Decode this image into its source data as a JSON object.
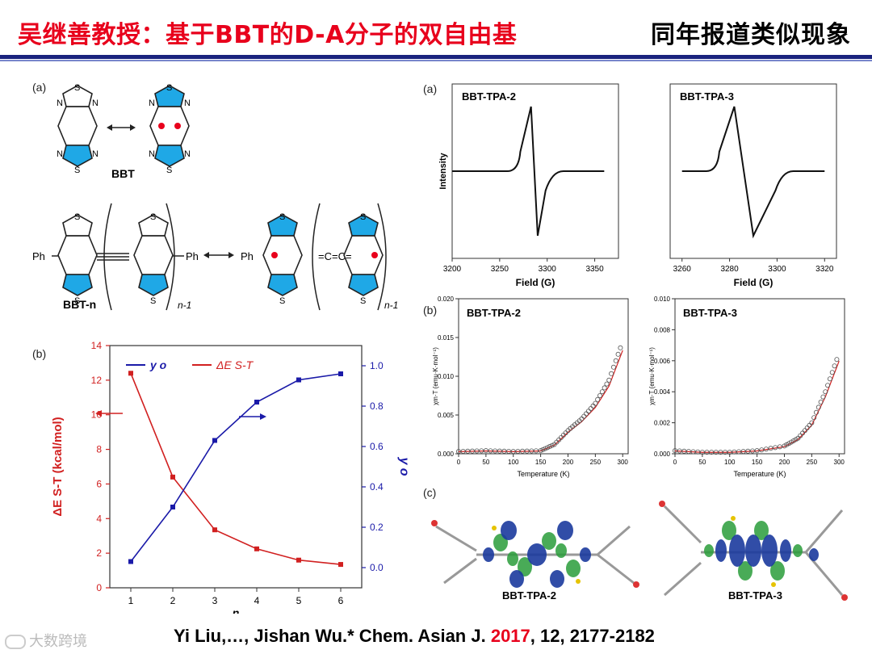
{
  "header": {
    "title_left": "吴继善教授：基于BBT的D-A分子的双自由基",
    "title_right": "同年报道类似现象"
  },
  "panel_labels": {
    "a_left": "(a)",
    "b_left": "(b)",
    "a_right": "(a)",
    "b_right": "(b)",
    "c_right": "(c)"
  },
  "structures": {
    "bbt_label": "BBT",
    "bbtn_label": "BBT-n",
    "ph": "Ph",
    "s": "S",
    "n": "N",
    "n_minus_1": "n-1",
    "cumulene": "=C=C="
  },
  "colors": {
    "accent_red": "#e8001c",
    "navy": "#1a237e",
    "series_blue": "#1a1aa8",
    "series_red": "#d12020",
    "ring_blue": "#1fa8e6"
  },
  "chart_data": [
    {
      "type": "line",
      "title": "",
      "xlabel": "n",
      "ylabel_left": "ΔE S-T (kcal/mol)",
      "ylabel_right": "y o",
      "x": [
        1,
        2,
        3,
        4,
        5,
        6
      ],
      "xlim": [
        0.5,
        6.5
      ],
      "ylim_left": [
        0,
        14
      ],
      "ylim_right": [
        -0.1,
        1.1
      ],
      "left_ticks": [
        "0",
        "2",
        "4",
        "6",
        "8",
        "10",
        "12",
        "14"
      ],
      "right_ticks": [
        "0.0",
        "0.2",
        "0.4",
        "0.6",
        "0.8",
        "1.0"
      ],
      "series": [
        {
          "name": "ΔE S-T",
          "axis": "left",
          "values": [
            12.4,
            6.4,
            3.35,
            2.25,
            1.6,
            1.35
          ]
        },
        {
          "name": "y o",
          "axis": "right",
          "values": [
            0.03,
            0.3,
            0.63,
            0.82,
            0.93,
            0.96
          ]
        }
      ],
      "legend": "top",
      "grid": false
    },
    {
      "type": "line",
      "title": "BBT-TPA-2",
      "xlabel": "Field (G)",
      "ylabel": "Intensity",
      "xlim": [
        3200,
        3375
      ],
      "x_ticks": [
        "3200",
        "3250",
        "3300",
        "3350"
      ],
      "description_points": {
        "x": [
          3200,
          3270,
          3283,
          3290,
          3300,
          3360
        ],
        "y": [
          0,
          0.3,
          1.0,
          -1.0,
          -0.3,
          0
        ]
      }
    },
    {
      "type": "line",
      "title": "BBT-TPA-3",
      "xlabel": "Field (G)",
      "xlim": [
        3255,
        3325
      ],
      "x_ticks": [
        "3260",
        "3280",
        "3300",
        "3320"
      ],
      "description_points": {
        "x": [
          3260,
          3275,
          3282,
          3290,
          3300,
          3320
        ],
        "y": [
          0,
          0.3,
          1.0,
          -1.0,
          -0.3,
          0
        ]
      }
    },
    {
      "type": "scatter",
      "title": "BBT-TPA-2",
      "xlabel": "Temperature (K)",
      "ylabel": "χm·T (emu·K·mol⁻¹)",
      "xlim": [
        0,
        310
      ],
      "ylim": [
        0,
        0.02
      ],
      "x_ticks": [
        "0",
        "50",
        "100",
        "150",
        "200",
        "250",
        "300"
      ],
      "y_ticks": [
        "0.000",
        "0.005",
        "0.010",
        "0.015",
        "0.020"
      ],
      "x": [
        0,
        50,
        100,
        150,
        175,
        200,
        225,
        250,
        275,
        300
      ],
      "y": [
        0.0003,
        0.0004,
        0.0003,
        0.0004,
        0.0012,
        0.003,
        0.0045,
        0.0065,
        0.0095,
        0.0145
      ]
    },
    {
      "type": "scatter",
      "title": "BBT-TPA-3",
      "xlabel": "Temperature (K)",
      "ylabel": "χm·T (emu·K·mol⁻¹)",
      "xlim": [
        0,
        310
      ],
      "ylim": [
        0,
        0.01
      ],
      "x_ticks": [
        "0",
        "50",
        "100",
        "150",
        "200",
        "250",
        "300"
      ],
      "y_ticks": [
        "0.000",
        "0.002",
        "0.004",
        "0.006",
        "0.008",
        "0.010"
      ],
      "x": [
        0,
        50,
        100,
        150,
        200,
        225,
        250,
        275,
        300
      ],
      "y": [
        0.0002,
        0.0001,
        0.0001,
        0.0002,
        0.0005,
        0.001,
        0.002,
        0.004,
        0.0065
      ]
    }
  ],
  "orbital_labels": {
    "left": "BBT-TPA-2",
    "right": "BBT-TPA-3"
  },
  "footer": {
    "authors": "Yi Liu,…, Jishan Wu.* Chem. Asian J. ",
    "year": "2017",
    "rest": ", 12, 2177-2182"
  },
  "watermark": {
    "text": "大数跨境"
  }
}
